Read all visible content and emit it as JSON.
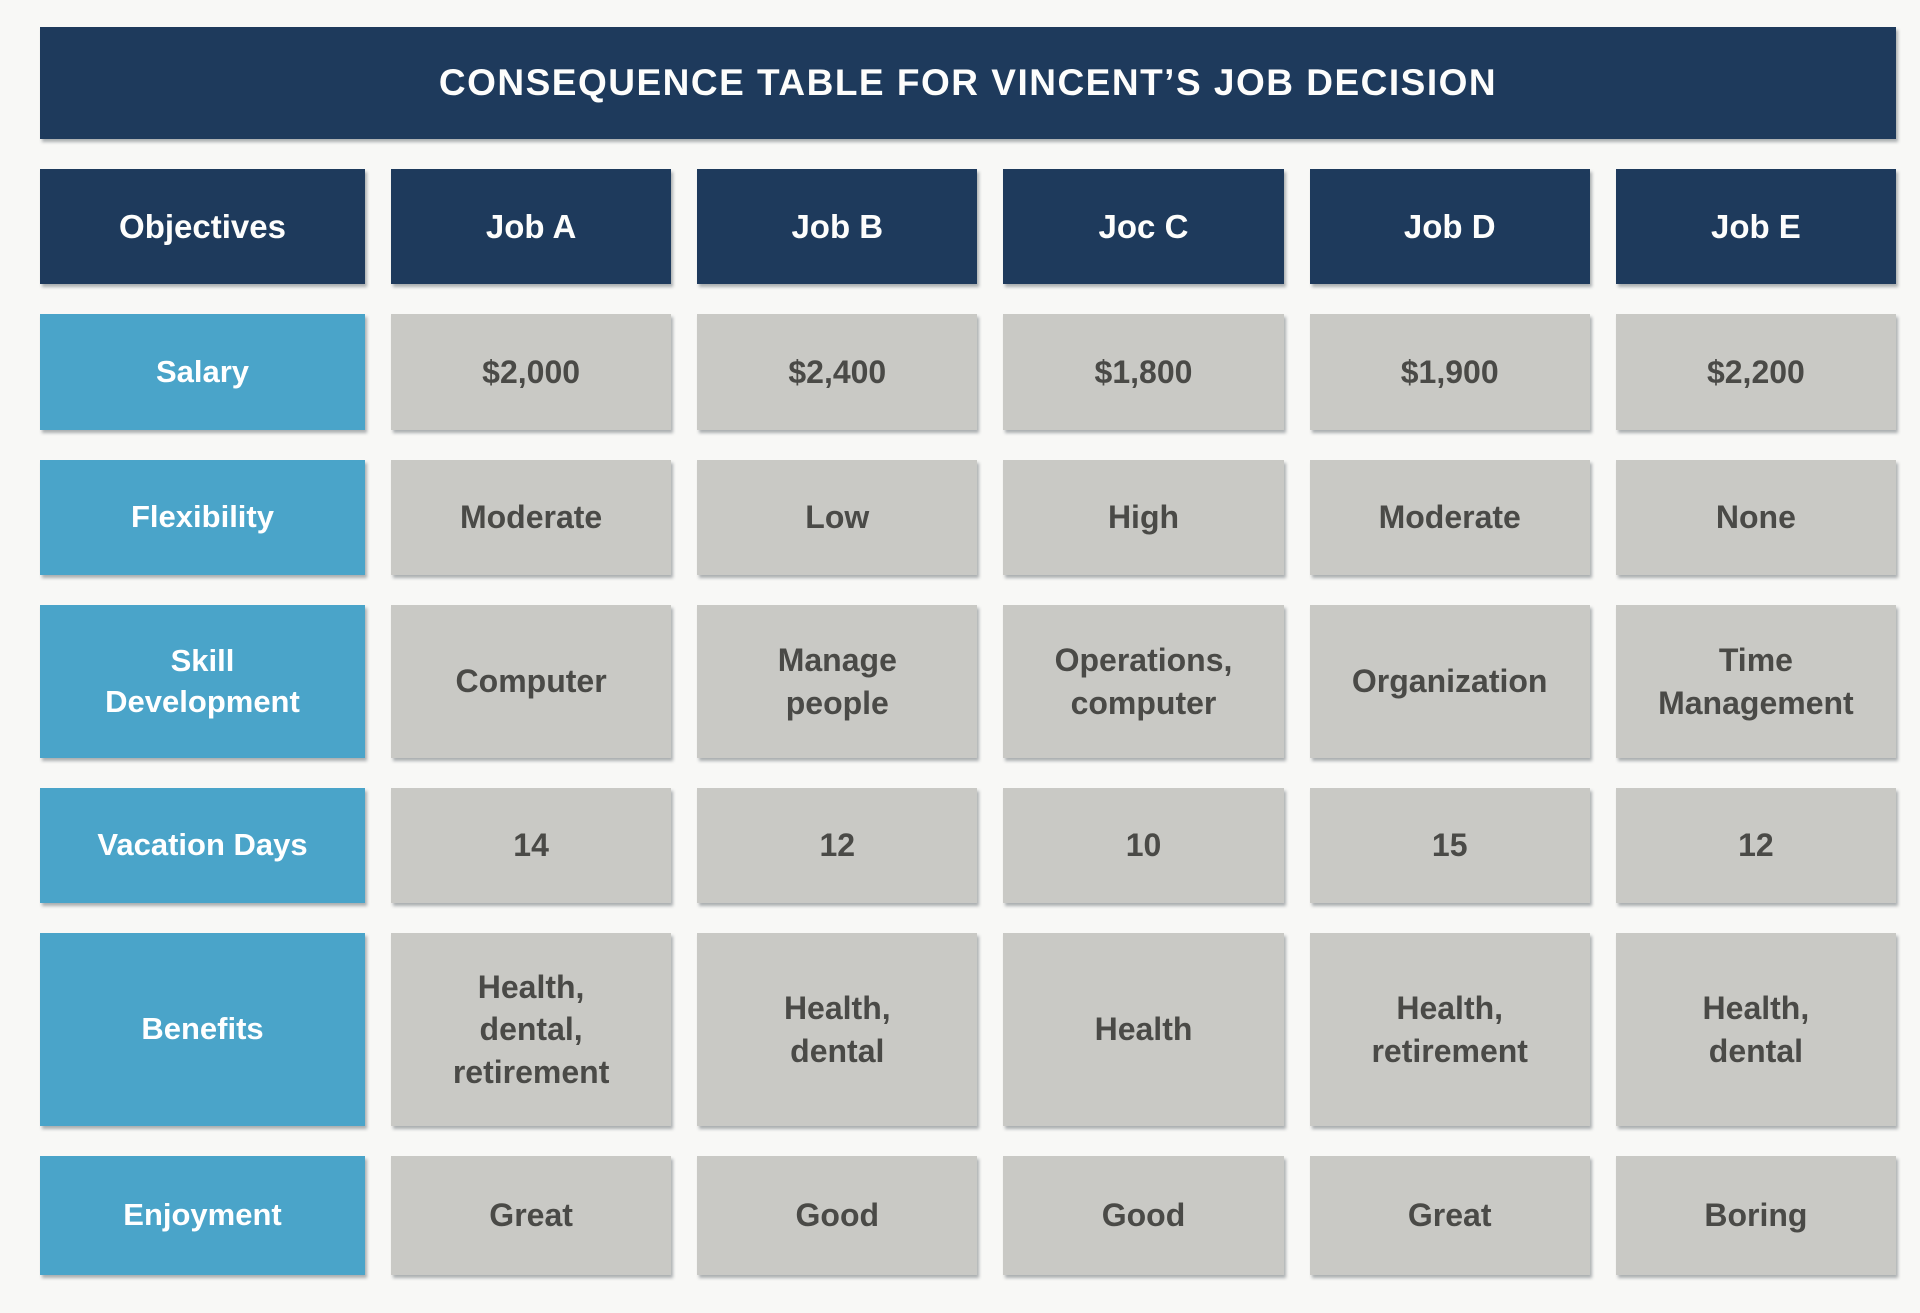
{
  "chart_data": {
    "type": "table",
    "title": "CONSEQUENCE TABLE FOR VINCENT’S JOB DECISION",
    "column_headers": [
      "Objectives",
      "Job A",
      "Job B",
      "Joc C",
      "Job D",
      "Job E"
    ],
    "rows": [
      {
        "objective": "Salary",
        "values": [
          "$2,000",
          "$2,400",
          "$1,800",
          "$1,900",
          "$2,200"
        ]
      },
      {
        "objective": "Flexibility",
        "values": [
          "Moderate",
          "Low",
          "High",
          "Moderate",
          "None"
        ]
      },
      {
        "objective": "Skill\nDevelopment",
        "values": [
          "Computer",
          "Manage\npeople",
          "Operations,\ncomputer",
          "Organization",
          "Time\nManagement"
        ]
      },
      {
        "objective": "Vacation Days",
        "values": [
          "14",
          "12",
          "10",
          "15",
          "12"
        ]
      },
      {
        "objective": "Benefits",
        "values": [
          "Health,\ndental,\nretirement",
          "Health,\ndental",
          "Health",
          "Health,\nretirement",
          "Health,\ndental"
        ]
      },
      {
        "objective": "Enjoyment",
        "values": [
          "Great",
          "Good",
          "Good",
          "Great",
          "Boring"
        ]
      }
    ],
    "layout": {
      "header_row": "dark navy, white bold text",
      "objective_column": "light blue, white bold text",
      "data_cells": "light gray, dark gray bold text",
      "grid": "separated blocks with gaps and subtle drop shadow"
    }
  },
  "colors": {
    "navy_header": "#1e3a5c",
    "blue_label": "#4aa4c9",
    "gray_cell": "#c9c9c5",
    "cell_text": "#4a4a47",
    "background": "#f8f8f6",
    "title_text": "#fdfdfc"
  }
}
